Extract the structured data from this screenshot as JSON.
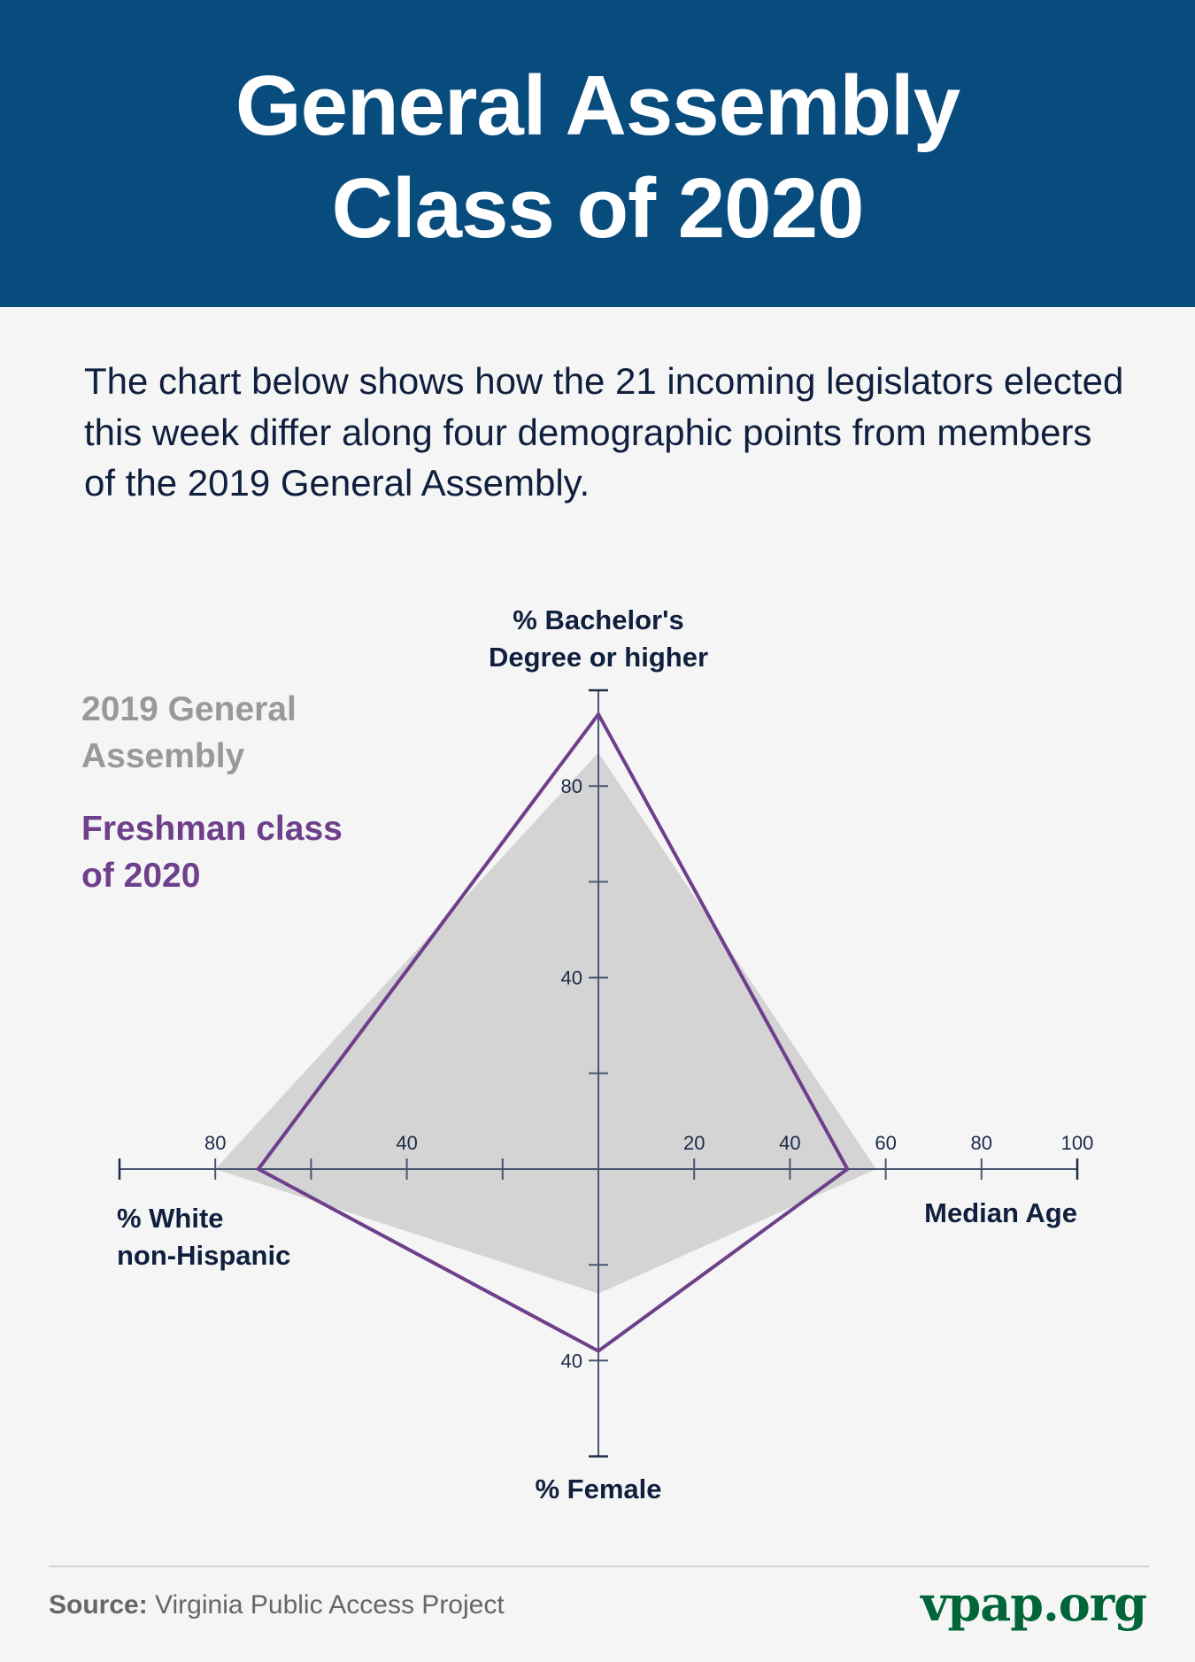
{
  "header": {
    "title_line1": "General Assembly",
    "title_line2": "Class of 2020"
  },
  "intro": "The chart below shows how the 21 incoming legislators elected this week differ along four demographic points from members of the 2019 General Assembly.",
  "legend": {
    "series_2019": "2019 General Assembly",
    "series_2020": "Freshman class of 2020"
  },
  "footer": {
    "source_label": "Source:",
    "source_text": "Virginia Public Access Project",
    "brand": "vpap.org"
  },
  "colors": {
    "header": "#084c7e",
    "series_2019": "#d4d4d4",
    "series_2020": "#6e3f8a",
    "brand": "#00663a"
  },
  "chart_data": {
    "type": "radar",
    "axes": [
      {
        "key": "bachelors",
        "label_line1": "% Bachelor's",
        "label_line2": "Degree or higher",
        "direction": "up",
        "range": [
          0,
          100
        ],
        "ticks": [
          20,
          40,
          60,
          80
        ],
        "tick_labels": [
          "80",
          "40"
        ],
        "labeled_ticks": [
          80,
          40
        ]
      },
      {
        "key": "median_age",
        "label_line1": "Median Age",
        "direction": "right",
        "range": [
          0,
          100
        ],
        "ticks": [
          20,
          40,
          60,
          80
        ],
        "tick_labels": [
          "20",
          "40",
          "60",
          "80",
          "100"
        ],
        "labeled_ticks": [
          20,
          40,
          60,
          80,
          100
        ]
      },
      {
        "key": "female",
        "label_line1": "% Female",
        "direction": "down",
        "range": [
          0,
          60
        ],
        "ticks": [
          20,
          40
        ],
        "tick_labels": [
          "40"
        ],
        "labeled_ticks": [
          40
        ]
      },
      {
        "key": "white",
        "label_line1": "% White",
        "label_line2": "non-Hispanic",
        "direction": "left",
        "range": [
          0,
          100
        ],
        "ticks": [
          20,
          40,
          60,
          80
        ],
        "tick_labels": [
          "80",
          "40"
        ],
        "labeled_ticks": [
          80,
          40
        ]
      }
    ],
    "series": [
      {
        "name": "2019 General Assembly",
        "style": "filled",
        "values": {
          "bachelors": 87,
          "median_age": 58,
          "female": 26,
          "white": 80
        }
      },
      {
        "name": "Freshman class of 2020",
        "style": "outline",
        "values": {
          "bachelors": 95,
          "median_age": 52,
          "female": 38,
          "white": 71
        }
      }
    ]
  }
}
